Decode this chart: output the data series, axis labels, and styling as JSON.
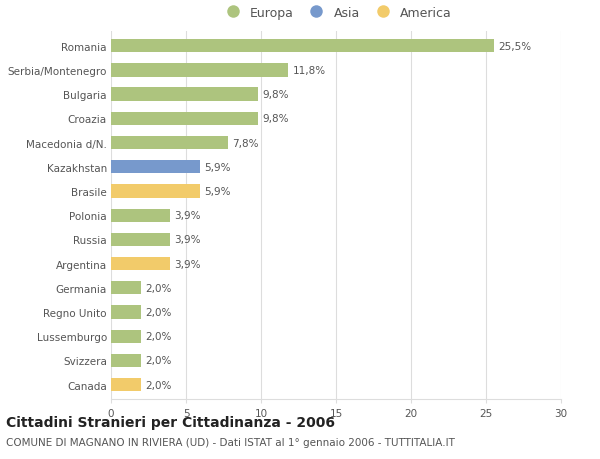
{
  "categories": [
    "Romania",
    "Serbia/Montenegro",
    "Bulgaria",
    "Croazia",
    "Macedonia d/N.",
    "Kazakhstan",
    "Brasile",
    "Polonia",
    "Russia",
    "Argentina",
    "Germania",
    "Regno Unito",
    "Lussemburgo",
    "Svizzera",
    "Canada"
  ],
  "values": [
    25.5,
    11.8,
    9.8,
    9.8,
    7.8,
    5.9,
    5.9,
    3.9,
    3.9,
    3.9,
    2.0,
    2.0,
    2.0,
    2.0,
    2.0
  ],
  "labels": [
    "25,5%",
    "11,8%",
    "9,8%",
    "9,8%",
    "7,8%",
    "5,9%",
    "5,9%",
    "3,9%",
    "3,9%",
    "3,9%",
    "2,0%",
    "2,0%",
    "2,0%",
    "2,0%",
    "2,0%"
  ],
  "continents": [
    "Europa",
    "Europa",
    "Europa",
    "Europa",
    "Europa",
    "Asia",
    "America",
    "Europa",
    "Europa",
    "America",
    "Europa",
    "Europa",
    "Europa",
    "Europa",
    "America"
  ],
  "colors": {
    "Europa": "#adc47e",
    "Asia": "#7799cc",
    "America": "#f2cb6a"
  },
  "xlim": [
    0,
    30
  ],
  "xticks": [
    0,
    5,
    10,
    15,
    20,
    25,
    30
  ],
  "title": "Cittadini Stranieri per Cittadinanza - 2006",
  "subtitle": "COMUNE DI MAGNANO IN RIVIERA (UD) - Dati ISTAT al 1° gennaio 2006 - TUTTITALIA.IT",
  "legend_labels": [
    "Europa",
    "Asia",
    "America"
  ],
  "bg_color": "#ffffff",
  "grid_color": "#dddddd",
  "bar_height": 0.55,
  "label_fontsize": 7.5,
  "tick_fontsize": 7.5,
  "title_fontsize": 10,
  "subtitle_fontsize": 7.5
}
